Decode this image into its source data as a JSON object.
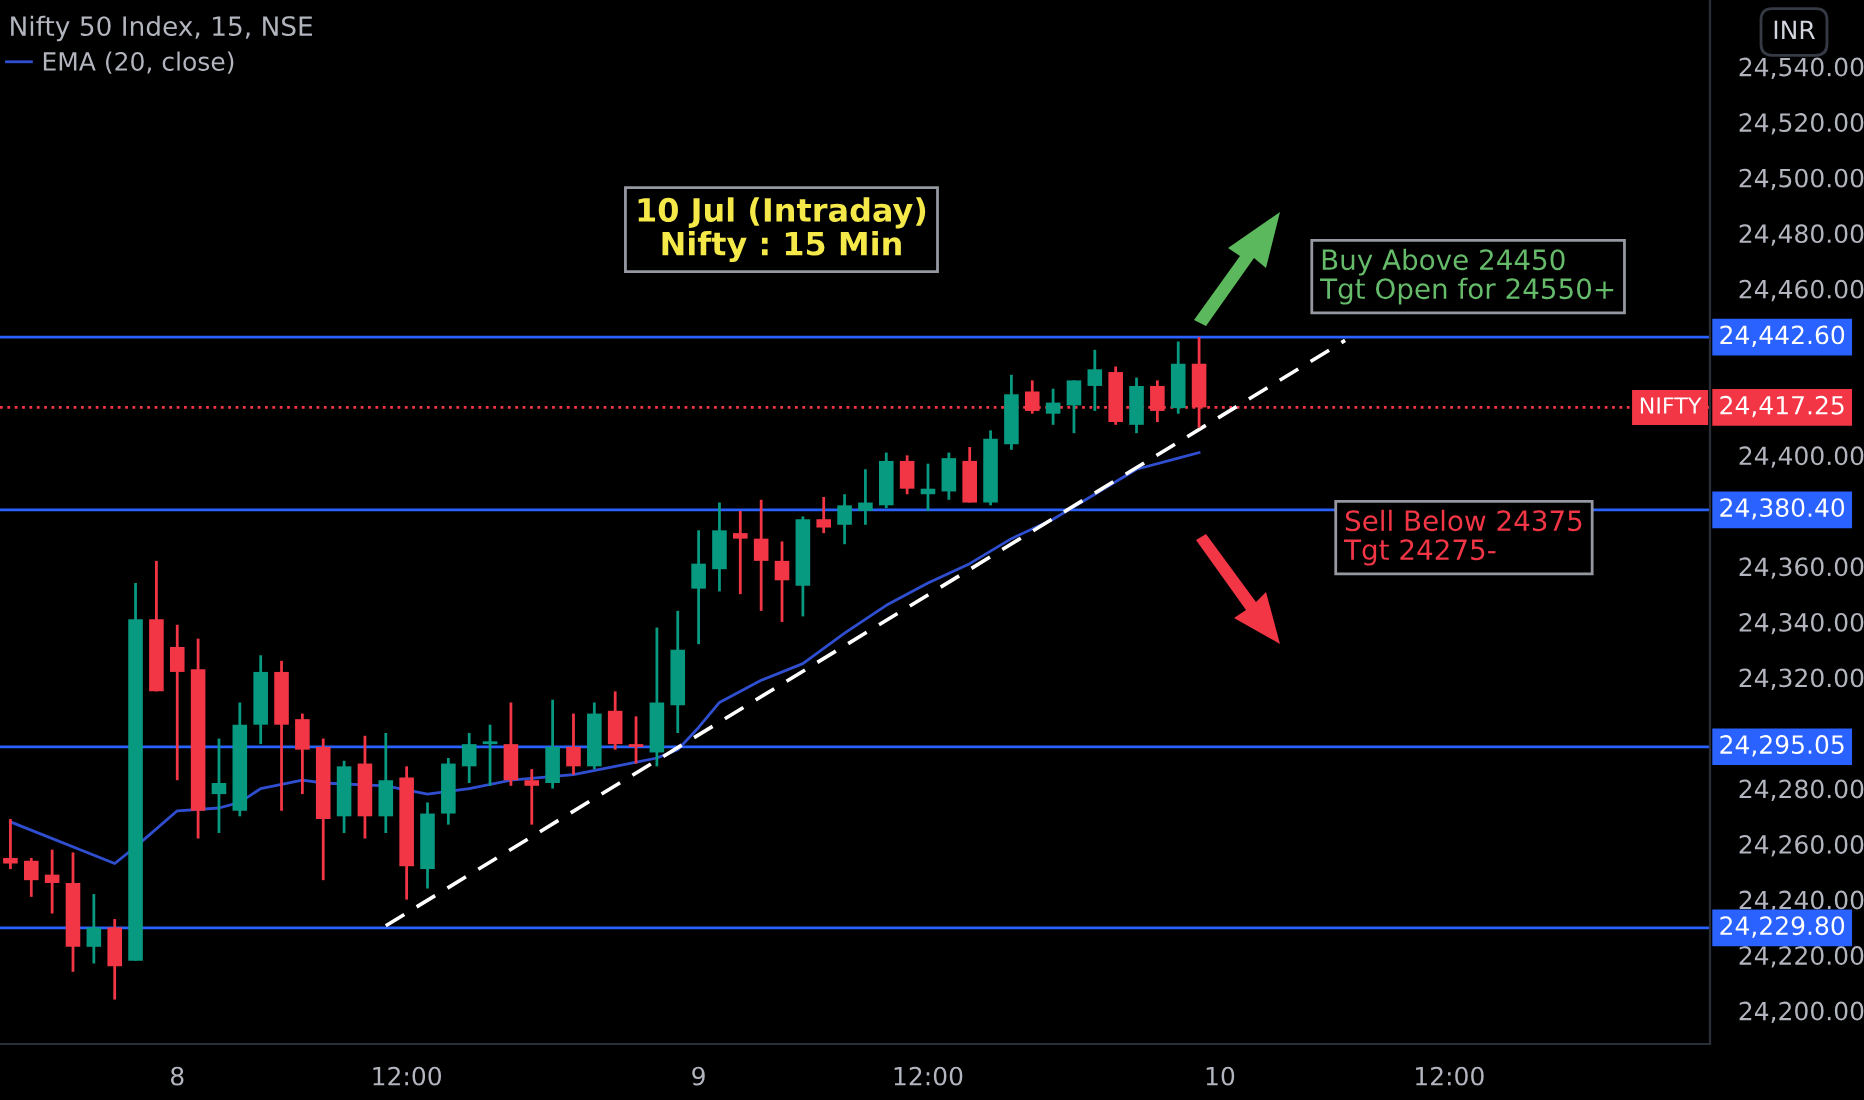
{
  "chart_data": {
    "type": "candlestick",
    "title": "Nifty 50 Index, 15, NSE",
    "categories": [
      null,
      null,
      null,
      null,
      null,
      null,
      null,
      null,
      "8",
      null,
      null,
      null,
      null,
      null,
      null,
      null,
      null,
      null,
      null,
      "12:00",
      null,
      null,
      null,
      null,
      null,
      null,
      null,
      null,
      null,
      null,
      null,
      null,
      null,
      "9",
      null,
      null,
      null,
      null,
      null,
      null,
      null,
      null,
      null,
      null,
      "12:00",
      null,
      null,
      null,
      null,
      null,
      null,
      null,
      null,
      null,
      null,
      null,
      null,
      null,
      "10",
      null,
      null,
      null,
      null,
      null,
      null,
      null,
      null,
      null,
      null,
      "12:00",
      null,
      null,
      null,
      null,
      null,
      null,
      null,
      null,
      null,
      null,
      null,
      null
    ],
    "ohlc": [
      [
        24255,
        24269,
        24251,
        24253
      ],
      [
        24254,
        24255,
        24241,
        24247
      ],
      [
        24249,
        24258,
        24235,
        24246
      ],
      [
        24246,
        24257,
        24214,
        24223
      ],
      [
        24223,
        24242,
        24217,
        24230
      ],
      [
        24230,
        24233,
        24204,
        24216
      ],
      [
        24218,
        24354,
        24218,
        24341
      ],
      [
        24341,
        24362,
        24315,
        24315
      ],
      [
        24331,
        24339,
        24283,
        24322
      ],
      [
        24323,
        24334,
        24262,
        24272
      ],
      [
        24278,
        24298,
        24264,
        24282
      ],
      [
        24272,
        24311,
        24270,
        24303
      ],
      [
        24303,
        24328,
        24296,
        24322
      ],
      [
        24322,
        24326,
        24272,
        24303
      ],
      [
        24305,
        24307,
        24278,
        24294
      ],
      [
        24295,
        24298,
        24247,
        24269
      ],
      [
        24270,
        24290,
        24264,
        24288
      ],
      [
        24289,
        24299,
        24262,
        24270
      ],
      [
        24270,
        24300,
        24264,
        24283
      ],
      [
        24284,
        24288,
        24240,
        24252
      ],
      [
        24251,
        24275,
        24244,
        24271
      ],
      [
        24271,
        24291,
        24267,
        24289
      ],
      [
        24288,
        24300,
        24282,
        24296
      ],
      [
        24296,
        24303,
        24281,
        24297
      ],
      [
        24296,
        24311,
        24281,
        24283
      ],
      [
        24283,
        24287,
        24267,
        24281
      ],
      [
        24282,
        24312,
        24280,
        24295
      ],
      [
        24295,
        24307,
        24285,
        24288
      ],
      [
        24288,
        24311,
        24287,
        24307
      ],
      [
        24308,
        24315,
        24294,
        24296
      ],
      [
        24296,
        24306,
        24289,
        24295
      ],
      [
        24293,
        24338,
        24288,
        24311
      ],
      [
        24310,
        24344,
        24300,
        24330
      ],
      [
        24352,
        24373,
        24332,
        24361
      ],
      [
        24359,
        24383,
        24351,
        24373
      ],
      [
        24372,
        24380,
        24350,
        24370
      ],
      [
        24370,
        24384,
        24344,
        24362
      ],
      [
        24362,
        24369,
        24340,
        24355
      ],
      [
        24353,
        24378,
        24342,
        24377
      ],
      [
        24377,
        24385,
        24372,
        24374
      ],
      [
        24375,
        24386,
        24368,
        24382
      ],
      [
        24380,
        24395,
        24375,
        24383
      ],
      [
        24382,
        24401,
        24381,
        24398
      ],
      [
        24398,
        24400,
        24386,
        24388
      ],
      [
        24386,
        24397,
        24380,
        24388
      ],
      [
        24387,
        24401,
        24384,
        24399
      ],
      [
        24398,
        24403,
        24383,
        24383
      ],
      [
        24383,
        24409,
        24382,
        24406
      ],
      [
        24404,
        24429,
        24402,
        24422
      ],
      [
        24423,
        24427,
        24415,
        24416
      ],
      [
        24415,
        24424,
        24411,
        24419
      ],
      [
        24418,
        24427,
        24408,
        24427
      ],
      [
        24425,
        24438,
        24416,
        24431
      ],
      [
        24430,
        24432,
        24411,
        24412
      ],
      [
        24411,
        24428,
        24408,
        24425
      ],
      [
        24425,
        24427,
        24412,
        24416
      ],
      [
        24417,
        24441,
        24415,
        24433
      ],
      [
        24433,
        24442.6,
        24410,
        24417.25
      ],
      null,
      null,
      null,
      null,
      null,
      null,
      null,
      null,
      null,
      null,
      null,
      null,
      null,
      null,
      null,
      null,
      null,
      null,
      null,
      null,
      null,
      null,
      null,
      null
    ],
    "colors": [
      "#f23645",
      "#f23645",
      "#f23645",
      "#f23645",
      "#089981",
      "#f23645",
      "#089981",
      "#f23645",
      "#f23645",
      "#f23645",
      "#089981",
      "#089981",
      "#089981",
      "#f23645",
      "#f23645",
      "#f23645",
      "#089981",
      "#f23645",
      "#089981",
      "#f23645",
      "#089981",
      "#089981",
      "#089981",
      "#089981",
      "#f23645",
      "#f23645",
      "#089981",
      "#f23645",
      "#089981",
      "#f23645",
      "#f23645",
      "#089981",
      "#089981",
      "#089981",
      "#089981",
      "#f23645",
      "#f23645",
      "#f23645",
      "#089981",
      "#f23645",
      "#089981",
      "#089981",
      "#089981",
      "#f23645",
      "#089981",
      "#089981",
      "#f23645",
      "#089981",
      "#089981",
      "#f23645",
      "#089981",
      "#089981",
      "#089981",
      "#f23645",
      "#089981",
      "#f23645",
      "#089981",
      "#f23645",
      null,
      null,
      null,
      null,
      null,
      null,
      null,
      null,
      null,
      null,
      null,
      null,
      null,
      null,
      null,
      null,
      null,
      null,
      null,
      null,
      null,
      null,
      null,
      null
    ],
    "series": [
      {
        "type": "line",
        "name": "EMA (20, close)",
        "color": "#2f4fd0",
        "line_style": "solid",
        "values": [
          24268,
          null,
          null,
          null,
          null,
          24253,
          24259,
          null,
          24272,
          null,
          24273,
          24275,
          24280,
          null,
          24283,
          24282,
          null,
          null,
          24281,
          null,
          24278,
          null,
          24280,
          null,
          24283,
          null,
          null,
          24285,
          null,
          24288,
          null,
          24291,
          24294,
          24302,
          24311,
          null,
          24319,
          null,
          24325,
          null,
          24336,
          null,
          24346,
          null,
          24354,
          null,
          24361,
          null,
          24370,
          null,
          24377,
          null,
          24386,
          null,
          24395,
          null,
          24399,
          24401,
          null,
          null,
          null,
          null,
          null,
          null,
          null,
          null,
          null,
          null,
          null,
          null,
          null,
          null,
          null,
          null,
          null,
          null,
          null,
          null,
          null,
          null,
          null,
          null
        ]
      },
      {
        "type": "line",
        "color": "#ffffff",
        "line_style": "dashed",
        "values": [
          null,
          null,
          null,
          null,
          null,
          null,
          null,
          null,
          null,
          null,
          null,
          null,
          null,
          null,
          null,
          null,
          null,
          null,
          24230.6,
          null,
          null,
          null,
          null,
          null,
          null,
          null,
          null,
          null,
          null,
          null,
          null,
          null,
          null,
          null,
          null,
          null,
          null,
          null,
          null,
          null,
          null,
          null,
          null,
          null,
          null,
          null,
          null,
          null,
          null,
          null,
          null,
          null,
          null,
          null,
          null,
          null,
          null,
          null,
          null,
          null,
          null,
          null,
          null,
          null,
          24441.4,
          null,
          null,
          null,
          null,
          null,
          null,
          null,
          null,
          null,
          null,
          null,
          null,
          null,
          null,
          null,
          null,
          null
        ]
      }
    ],
    "ref_lines": [
      {
        "axis": "y",
        "value": 24442.6,
        "label": "24,442.60",
        "color": "#2962ff",
        "line_style": "solid"
      },
      {
        "axis": "y",
        "value": 24380.4,
        "label": "24,380.40",
        "color": "#2962ff",
        "line_style": "solid"
      },
      {
        "axis": "y",
        "value": 24295.05,
        "label": "24,295.05",
        "color": "#2962ff",
        "line_style": "solid"
      },
      {
        "axis": "y",
        "value": 24229.8,
        "label": "24,229.80",
        "color": "#2962ff",
        "line_style": "solid"
      },
      {
        "axis": "y",
        "value": 24417.25,
        "label": "24,417.25",
        "color": "#f23645",
        "line_style": "dotted"
      }
    ],
    "annotations": [
      "10 Jul (Intraday)\nNifty : 15 Min",
      "Buy Above 24450\nTgt Open for 24550+",
      "Sell Below 24375\nTgt 24275-",
      "NIFTY",
      "INR"
    ],
    "ylim": [
      24188,
      24564
    ],
    "yticks": [
      {
        "value": 24540,
        "label": "24,540.00"
      },
      {
        "value": 24520,
        "label": "24,520.00"
      },
      {
        "value": 24500,
        "label": "24,500.00"
      },
      {
        "value": 24480,
        "label": "24,480.00"
      },
      {
        "value": 24460,
        "label": "24,460.00"
      },
      {
        "value": 24400,
        "label": "24,400.00"
      },
      {
        "value": 24360,
        "label": "24,360.00"
      },
      {
        "value": 24340,
        "label": "24,340.00"
      },
      {
        "value": 24320,
        "label": "24,320.00"
      },
      {
        "value": 24280,
        "label": "24,280.00"
      },
      {
        "value": 24260,
        "label": "24,260.00"
      },
      {
        "value": 24240,
        "label": "24,240.00"
      },
      {
        "value": 24220,
        "label": "24,220.00"
      },
      {
        "value": 24200,
        "label": "24,200.00"
      }
    ],
    "legend": "top left",
    "grid": false
  }
}
